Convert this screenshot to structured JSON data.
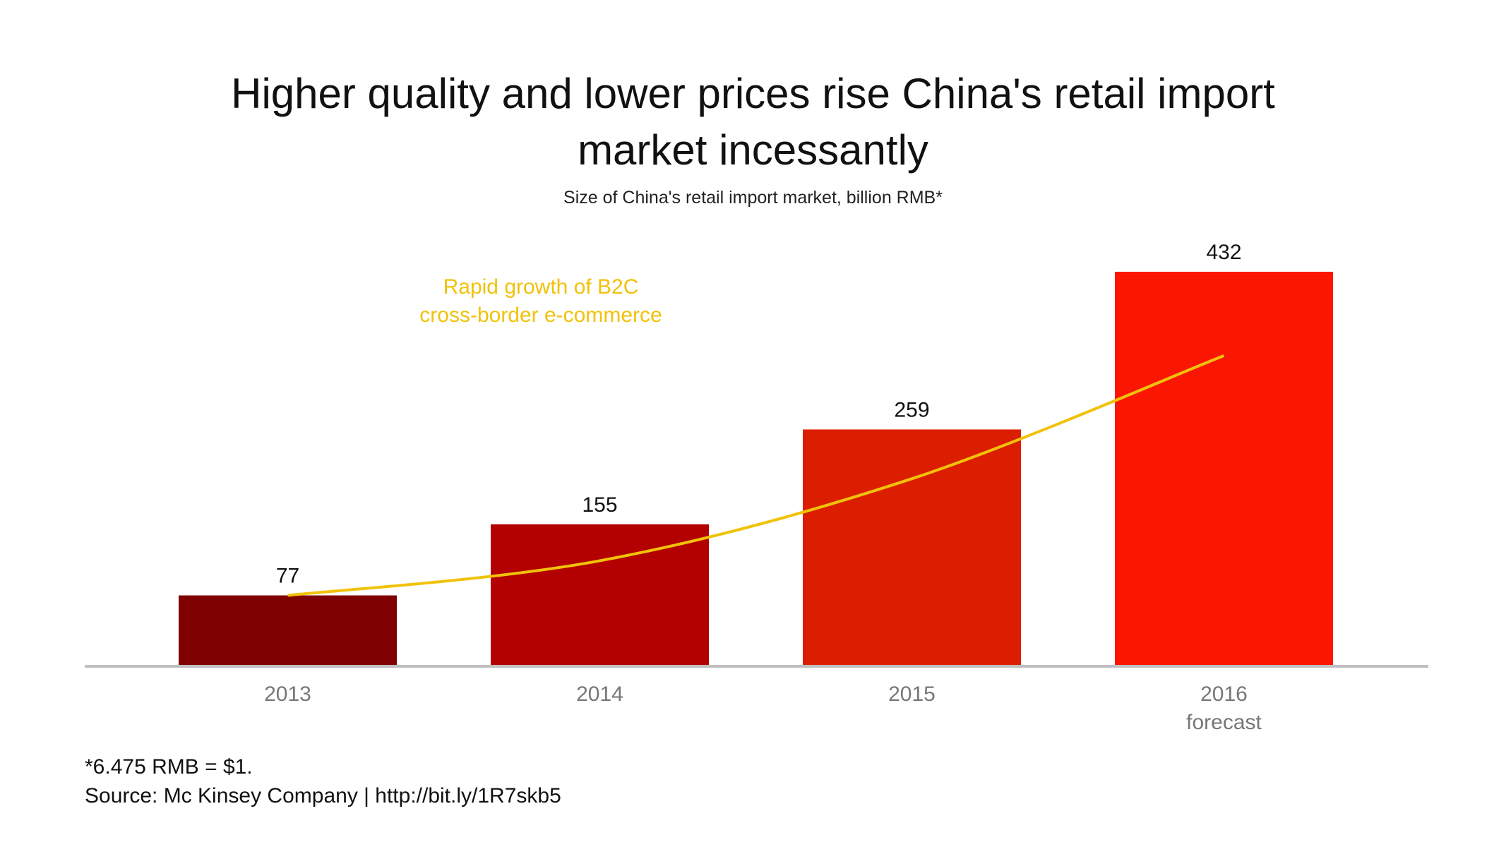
{
  "chart_data": {
    "type": "bar",
    "title_lines": [
      "Higher quality and lower prices rise China's retail import",
      "market incessantly"
    ],
    "subtitle": "Size of China's retail import market, billion RMB*",
    "categories": [
      "2013",
      "2014",
      "2015",
      "2016"
    ],
    "category_sublabels": [
      "",
      "",
      "",
      "forecast"
    ],
    "values": [
      77,
      155,
      259,
      432
    ],
    "bar_colors": [
      "#7f0000",
      "#b30000",
      "#dc1e00",
      "#fa1600"
    ],
    "ylim": [
      0,
      432
    ],
    "grid": false,
    "trend_line": {
      "color": "#f0c20a",
      "values": [
        77,
        115,
        205,
        340
      ]
    },
    "annotation": [
      "Rapid growth of B2C",
      "cross-border e-commerce"
    ],
    "annotation_color": "#f0c20a",
    "axis_color": "#c0c0c0",
    "xlabel": "",
    "ylabel": ""
  },
  "footer": {
    "note": "*6.475 RMB = $1.",
    "source": "Source: Mc Kinsey Company | http://bit.ly/1R7skb5"
  }
}
